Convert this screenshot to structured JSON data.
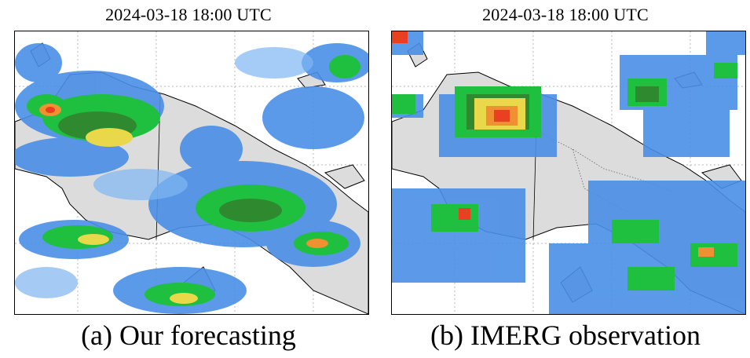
{
  "panels": [
    {
      "timestamp": "2024-03-18 18:00 UTC",
      "caption": "(a) Our forecasting"
    },
    {
      "timestamp": "2024-03-18 18:00 UTC",
      "caption": "(b) IMERG observation"
    }
  ],
  "colors": {
    "land": "#dcdcdc",
    "ocean": "#ffffff",
    "precip_light": "#4a8fe7",
    "precip_light_edge": "#7fb6f2",
    "precip_moderate": "#1fbf3f",
    "precip_heavy": "#2f8a2f",
    "precip_intense_yellow": "#e8d84a",
    "precip_intense_orange": "#f09030",
    "precip_extreme": "#e84020",
    "coastline": "#000000",
    "gridline": "#9a9a9a"
  }
}
